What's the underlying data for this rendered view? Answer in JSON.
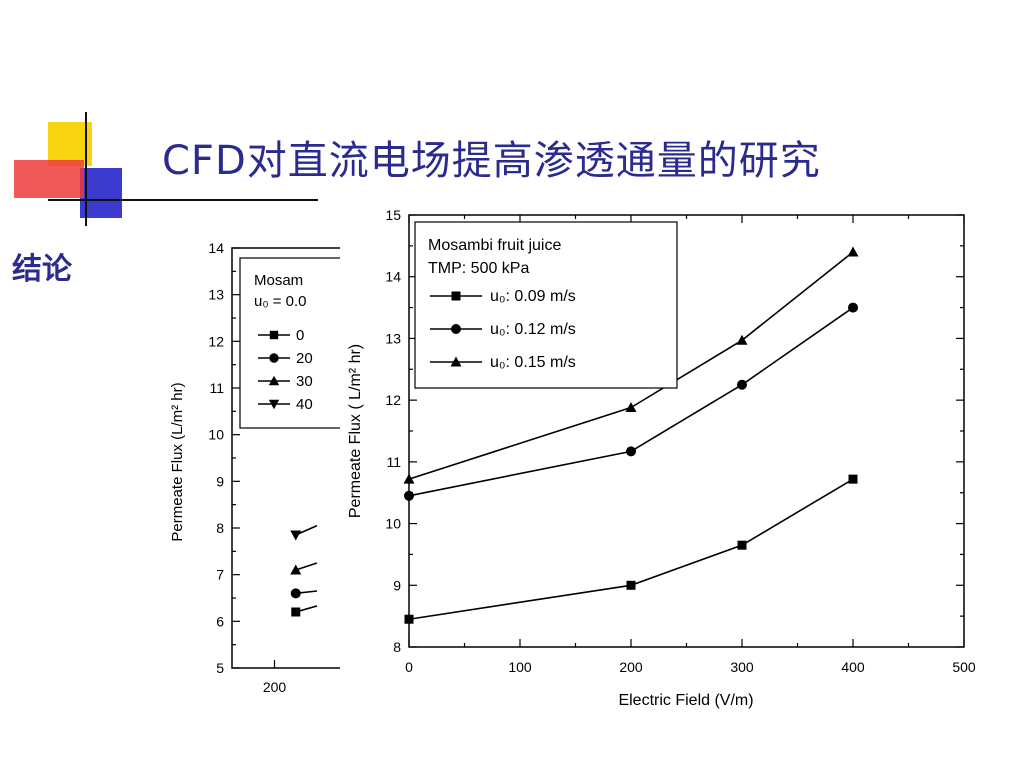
{
  "slide": {
    "title": "CFD对直流电场提高渗透通量的研究",
    "subtitle": "结论"
  },
  "chart_data": [
    {
      "type": "line",
      "partially_occluded": true,
      "title": "",
      "xlabel": "",
      "ylabel": "Permeate Flux (L/m² hr)",
      "ylim": [
        5,
        14
      ],
      "xlim_visible": [
        150,
        300
      ],
      "x_ticks": [
        200
      ],
      "y_ticks": [
        5,
        6,
        7,
        8,
        9,
        10,
        11,
        12,
        13,
        14
      ],
      "legend_placement": "top-left",
      "legend": {
        "title_lines": [
          "Mosam",
          "u₀ = 0.0"
        ],
        "entries": [
          "0",
          "20",
          "30",
          "40"
        ]
      },
      "series": [
        {
          "label": "0",
          "marker": "square",
          "points": [
            [
              225,
              6.2
            ]
          ],
          "stub_end": [
            250,
            6.33
          ]
        },
        {
          "label": "20",
          "marker": "circle",
          "points": [
            [
              225,
              6.6
            ]
          ],
          "stub_end": [
            250,
            6.65
          ]
        },
        {
          "label": "30",
          "marker": "triangle-up",
          "points": [
            [
              225,
              7.1
            ]
          ],
          "stub_end": [
            250,
            7.25
          ]
        },
        {
          "label": "40",
          "marker": "triangle-down",
          "points": [
            [
              225,
              7.85
            ]
          ],
          "stub_end": [
            250,
            8.05
          ]
        }
      ]
    },
    {
      "type": "line",
      "title": "",
      "xlabel": "Electric Field (V/m)",
      "ylabel": "Permeate Flux ( L/m² hr)",
      "xlim": [
        0,
        500
      ],
      "ylim": [
        8,
        15
      ],
      "x_ticks": [
        0,
        100,
        200,
        300,
        400,
        500
      ],
      "y_ticks": [
        8,
        9,
        10,
        11,
        12,
        13,
        14,
        15
      ],
      "legend_placement": "top-left",
      "legend": {
        "title_lines": [
          "Mosambi  fruit juice",
          " TMP: 500 kPa"
        ],
        "entries": [
          "u₀: 0.09 m/s",
          "u₀: 0.12 m/s",
          "u₀: 0.15 m/s"
        ]
      },
      "series": [
        {
          "name": "u₀: 0.09 m/s",
          "marker": "square",
          "x": [
            0,
            200,
            300,
            400
          ],
          "y": [
            8.45,
            9.0,
            9.65,
            10.72
          ]
        },
        {
          "name": "u₀: 0.12 m/s",
          "marker": "circle",
          "x": [
            0,
            200,
            300,
            400
          ],
          "y": [
            10.45,
            11.17,
            12.25,
            13.5
          ]
        },
        {
          "name": "u₀: 0.15 m/s",
          "marker": "triangle-up",
          "x": [
            0,
            200,
            300,
            400
          ],
          "y": [
            10.72,
            11.88,
            12.97,
            14.4
          ]
        }
      ]
    }
  ]
}
